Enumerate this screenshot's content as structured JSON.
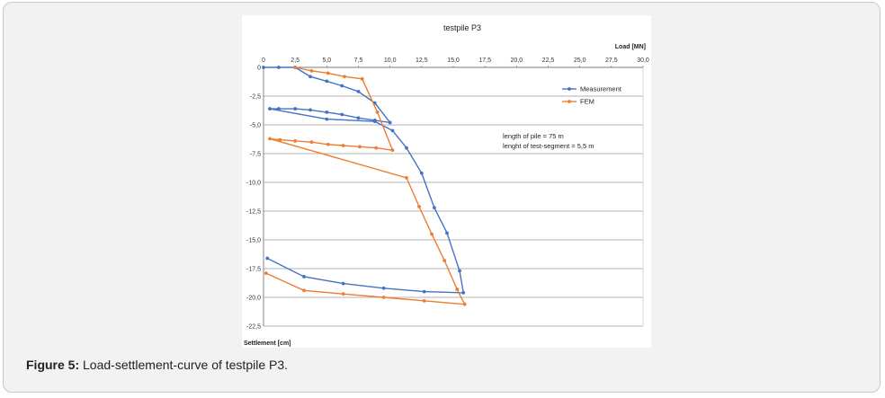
{
  "caption": {
    "label": "Figure 5:",
    "text": " Load-settlement-curve of testpile P3."
  },
  "chart_data": {
    "type": "line",
    "title": "testpile P3",
    "xlabel": "Load [MN]",
    "ylabel": "Settlement [cm]",
    "xlim": [
      0,
      30
    ],
    "ylim": [
      -22.5,
      0
    ],
    "x_ticks": [
      "0",
      "2,5",
      "5,0",
      "7,5",
      "10,0",
      "12,5",
      "15,0",
      "17,5",
      "20,0",
      "22,5",
      "25,0",
      "27,5",
      "30,0"
    ],
    "y_ticks": [
      "0",
      "-2,5",
      "-5,0",
      "-7,5",
      "-10,0",
      "-12,5",
      "-15,0",
      "-17,5",
      "-20,0",
      "-22,5"
    ],
    "grid": "horizontal",
    "legend_position": "right",
    "annotations": [
      "length of pile = 75 m",
      "lenght of  test-segment = 5,5 m"
    ],
    "series": [
      {
        "name": "Measurement",
        "color": "#4472c4",
        "points": [
          [
            0,
            0
          ],
          [
            1.2,
            0
          ],
          [
            2.5,
            0
          ],
          [
            3.7,
            -0.8
          ],
          [
            5,
            -1.2
          ],
          [
            6.2,
            -1.6
          ],
          [
            7.5,
            -2.1
          ],
          [
            8.8,
            -3.1
          ],
          [
            10,
            -4.8
          ],
          [
            8.8,
            -4.6
          ],
          [
            7.5,
            -4.4
          ],
          [
            6.2,
            -4.1
          ],
          [
            5,
            -3.9
          ],
          [
            3.7,
            -3.7
          ],
          [
            2.5,
            -3.6
          ],
          [
            1.2,
            -3.6
          ],
          [
            0.5,
            -3.6
          ],
          [
            5,
            -4.5
          ],
          [
            8.8,
            -4.7
          ],
          [
            10.2,
            -5.5
          ],
          [
            11.3,
            -7.0
          ],
          [
            12.5,
            -9.2
          ],
          [
            13.5,
            -12.2
          ],
          [
            14.5,
            -14.4
          ],
          [
            15.5,
            -17.7
          ],
          [
            15.8,
            -19.6
          ],
          [
            12.7,
            -19.5
          ],
          [
            9.5,
            -19.2
          ],
          [
            6.3,
            -18.8
          ],
          [
            3.2,
            -18.2
          ],
          [
            0.3,
            -16.6
          ]
        ]
      },
      {
        "name": "FEM",
        "color": "#ed7d31",
        "points": [
          [
            2.5,
            0
          ],
          [
            3.8,
            -0.3
          ],
          [
            5.1,
            -0.5
          ],
          [
            6.4,
            -0.8
          ],
          [
            7.8,
            -1.0
          ],
          [
            9.0,
            -3.9
          ],
          [
            10.2,
            -7.2
          ],
          [
            8.9,
            -7.0
          ],
          [
            7.6,
            -6.9
          ],
          [
            6.3,
            -6.8
          ],
          [
            5.1,
            -6.7
          ],
          [
            3.8,
            -6.5
          ],
          [
            2.5,
            -6.4
          ],
          [
            1.3,
            -6.3
          ],
          [
            0.5,
            -6.2
          ],
          [
            11.3,
            -9.6
          ],
          [
            12.3,
            -12.1
          ],
          [
            13.3,
            -14.5
          ],
          [
            14.3,
            -16.8
          ],
          [
            15.3,
            -19.3
          ],
          [
            15.9,
            -20.6
          ],
          [
            12.7,
            -20.3
          ],
          [
            9.5,
            -20.0
          ],
          [
            6.3,
            -19.7
          ],
          [
            3.2,
            -19.4
          ],
          [
            0.2,
            -17.9
          ]
        ]
      }
    ]
  }
}
